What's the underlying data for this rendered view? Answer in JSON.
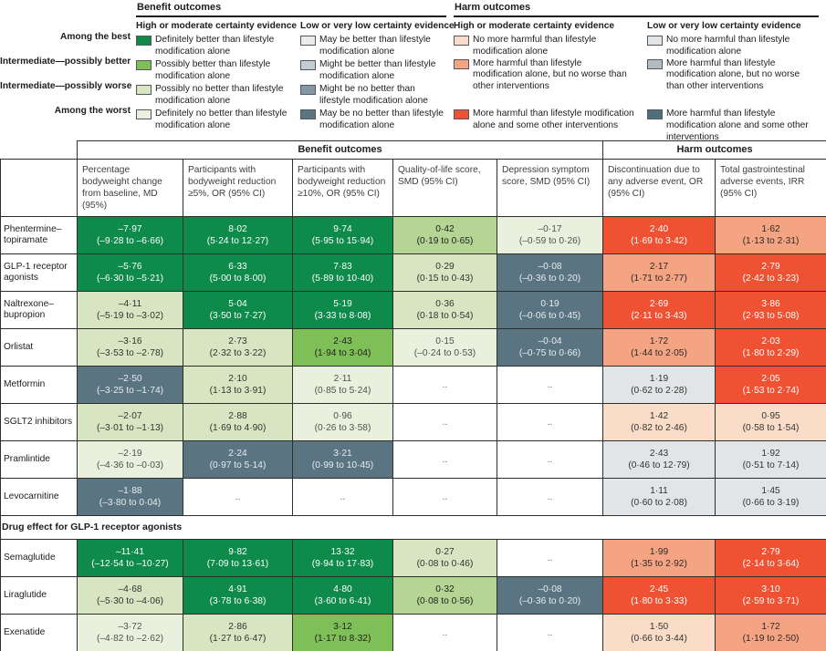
{
  "palette": {
    "g1": {
      "bg": "#0e8a4a",
      "fg": "#ffffff"
    },
    "g2": {
      "bg": "#7fbf58",
      "fg": "#20201e"
    },
    "g2l": {
      "bg": "#b5d595",
      "fg": "#20201e"
    },
    "g3": {
      "bg": "#d7e5c2",
      "fg": "#33332f"
    },
    "g4": {
      "bg": "#e9f0dd",
      "fg": "#52524d"
    },
    "lb1": {
      "bg": "#ebedec",
      "fg": "#20201e"
    },
    "lb2": {
      "bg": "#c4cdd2",
      "fg": "#20201e"
    },
    "lb3": {
      "bg": "#8299a4",
      "fg": "#ffffff"
    },
    "s1": {
      "bg": "#5b7482",
      "fg": "#e9edef"
    },
    "h1": {
      "bg": "#f9ddc8",
      "fg": "#33332f"
    },
    "h2": {
      "bg": "#f4a482",
      "fg": "#2b2b28"
    },
    "h3": {
      "bg": "#ef5233",
      "fg": "#ffffff"
    },
    "h4": {
      "bg": "#e2e5e7",
      "fg": "#33332f"
    },
    "hl2": {
      "bg": "#b2bcc1",
      "fg": "#20201e"
    },
    "hl3": {
      "bg": "#516e7d",
      "fg": "#ffffff"
    },
    "blank": {
      "bg": "#ffffff",
      "fg": "#55554f"
    }
  },
  "legend": {
    "row_labels": [
      "Among the best",
      "Intermediate—possibly better",
      "Intermediate—possibly worse",
      "Among the worst"
    ],
    "groups": [
      {
        "title": "Benefit outcomes",
        "columns": [
          {
            "title": "High or moderate certainty evidence",
            "items": [
              {
                "color_key": "g1",
                "label": "Definitely better than lifestyle modification alone"
              },
              {
                "color_key": "g2",
                "label": "Possibly better than lifestyle modification alone"
              },
              {
                "color_key": "g3",
                "label": "Possibly no better than lifestyle modification alone"
              },
              {
                "color_key": "g4",
                "label": "Definitely no better than lifestyle modification alone"
              }
            ]
          },
          {
            "title": "Low or very low certainty evidence",
            "items": [
              {
                "color_key": "lb1",
                "label": "May be better than lifestyle modification alone"
              },
              {
                "color_key": "lb2",
                "label": "Might be better than lifestyle modification alone"
              },
              {
                "color_key": "lb3",
                "label": "Might be no better than lifestyle modification alone"
              },
              {
                "color_key": "s1",
                "label": "May be no better than lifestyle modification alone"
              }
            ]
          }
        ]
      },
      {
        "title": "Harm outcomes",
        "columns": [
          {
            "title": "High or moderate certainty evidence",
            "items": [
              {
                "color_key": "h1",
                "label": "No more harmful than lifestyle modification alone"
              },
              {
                "color_key": "h2",
                "label": "More harmful than lifestyle modification alone, but no worse than other interventions"
              },
              {
                "color_key": "h3",
                "label": "More harmful than lifestyle modification alone and some other interventions"
              }
            ]
          },
          {
            "title": "Low or very low certainty evidence",
            "items": [
              {
                "color_key": "h4",
                "label": "No more harmful than lifestyle modification alone"
              },
              {
                "color_key": "hl2",
                "label": "More harmful than lifestyle modification alone, but no worse than other interventions"
              },
              {
                "color_key": "hl3",
                "label": "More harmful than lifestyle modification alone and some other interventions"
              }
            ]
          }
        ]
      }
    ]
  },
  "chart_data": {
    "type": "table",
    "group_headers": [
      {
        "label": "Benefit outcomes",
        "span": 5
      },
      {
        "label": "Harm outcomes",
        "span": 2
      }
    ],
    "columns": [
      "Percentage bodyweight change from baseline, MD (95%)",
      "Participants with bodyweight reduction ≥5%, OR (95% CI)",
      "Participants with bodyweight reduction ≥10%, OR (95% CI)",
      "Quality-of-life score, SMD (95% CI)",
      "Depression symptom score, SMD (95% CI)",
      "Discontinuation due to any adverse event, OR (95% CI)",
      "Total gastrointestinal adverse events, IRR (95% CI)"
    ],
    "sections": [
      {
        "header": null,
        "rows": [
          {
            "drug": "Phentermine–topiramate",
            "cells": [
              {
                "value": "–7·97",
                "ci": "(–9·28 to –6·66)",
                "key": "g1"
              },
              {
                "value": "8·02",
                "ci": "(5·24 to 12·27)",
                "key": "g1"
              },
              {
                "value": "9·74",
                "ci": "(5·95 to 15·94)",
                "key": "g1"
              },
              {
                "value": "0·42",
                "ci": "(0·19 to 0·65)",
                "key": "g2l"
              },
              {
                "value": "–0·17",
                "ci": "(–0·59 to 0·26)",
                "key": "g4"
              },
              {
                "value": "2·40",
                "ci": "(1·69 to 3·42)",
                "key": "h3"
              },
              {
                "value": "1·62",
                "ci": "(1·13 to 2·31)",
                "key": "h2"
              }
            ]
          },
          {
            "drug": "GLP-1 receptor agonists",
            "cells": [
              {
                "value": "–5·76",
                "ci": "(–6·30 to –5·21)",
                "key": "g1"
              },
              {
                "value": "6·33",
                "ci": "(5·00 to 8·00)",
                "key": "g1"
              },
              {
                "value": "7·83",
                "ci": "(5·89 to 10·40)",
                "key": "g1"
              },
              {
                "value": "0·29",
                "ci": "(0·15 to 0·43)",
                "key": "g3"
              },
              {
                "value": "–0·08",
                "ci": "(–0·36 to 0·20)",
                "key": "s1"
              },
              {
                "value": "2·17",
                "ci": "(1·71 to 2·77)",
                "key": "h2"
              },
              {
                "value": "2·79",
                "ci": "(2·42 to 3·23)",
                "key": "h3"
              }
            ]
          },
          {
            "drug": "Naltrexone–bupropion",
            "cells": [
              {
                "value": "–4·11",
                "ci": "(–5·19 to –3·02)",
                "key": "g3"
              },
              {
                "value": "5·04",
                "ci": "(3·50 to 7·27)",
                "key": "g1"
              },
              {
                "value": "5·19",
                "ci": "(3·33 to 8·08)",
                "key": "g1"
              },
              {
                "value": "0·36",
                "ci": "(0·18 to 0·54)",
                "key": "g3"
              },
              {
                "value": "0·19",
                "ci": "(–0·06 to 0·45)",
                "key": "s1"
              },
              {
                "value": "2·69",
                "ci": "(2·11 to 3·43)",
                "key": "h3"
              },
              {
                "value": "3·86",
                "ci": "(2·93 to 5·08)",
                "key": "h3"
              }
            ]
          },
          {
            "drug": "Orlistat",
            "cells": [
              {
                "value": "–3·16",
                "ci": "(–3·53 to –2·78)",
                "key": "g3"
              },
              {
                "value": "2·73",
                "ci": "(2·32 to 3·22)",
                "key": "g3"
              },
              {
                "value": "2·43",
                "ci": "(1·94 to 3·04)",
                "key": "g2"
              },
              {
                "value": "0·15",
                "ci": "(–0·24 to 0·53)",
                "key": "g4"
              },
              {
                "value": "–0·04",
                "ci": "(–0·75 to 0·66)",
                "key": "s1"
              },
              {
                "value": "1·72",
                "ci": "(1·44 to 2·05)",
                "key": "h2"
              },
              {
                "value": "2·03",
                "ci": "(1·80 to 2·29)",
                "key": "h3"
              }
            ]
          },
          {
            "drug": "Metformin",
            "cells": [
              {
                "value": "–2·50",
                "ci": "(–3·25 to –1·74)",
                "key": "s1"
              },
              {
                "value": "2·10",
                "ci": "(1·13 to 3·91)",
                "key": "g3"
              },
              {
                "value": "2·11",
                "ci": "(0·85 to 5·24)",
                "key": "g4"
              },
              {
                "value": "..",
                "ci": "",
                "key": "blank"
              },
              {
                "value": "..",
                "ci": "",
                "key": "blank"
              },
              {
                "value": "1·19",
                "ci": "(0·62 to 2·28)",
                "key": "h4"
              },
              {
                "value": "2·05",
                "ci": "(1·53 to 2·74)",
                "key": "h3"
              }
            ]
          },
          {
            "drug": "SGLT2 inhibitors",
            "cells": [
              {
                "value": "–2·07",
                "ci": "(–3·01 to –1·13)",
                "key": "g3"
              },
              {
                "value": "2·88",
                "ci": "(1·69 to 4·90)",
                "key": "g3"
              },
              {
                "value": "0·96",
                "ci": "(0·26 to 3·58)",
                "key": "g4"
              },
              {
                "value": "..",
                "ci": "",
                "key": "blank"
              },
              {
                "value": "..",
                "ci": "",
                "key": "blank"
              },
              {
                "value": "1·42",
                "ci": "(0·82 to 2·46)",
                "key": "h1"
              },
              {
                "value": "0·95",
                "ci": "(0·58 to 1·54)",
                "key": "h1"
              }
            ]
          },
          {
            "drug": "Pramlintide",
            "cells": [
              {
                "value": "–2·19",
                "ci": "(–4·36 to –0·03)",
                "key": "g4"
              },
              {
                "value": "2·24",
                "ci": "(0·97 to 5·14)",
                "key": "s1"
              },
              {
                "value": "3·21",
                "ci": "(0·99 to 10·45)",
                "key": "s1"
              },
              {
                "value": "..",
                "ci": "",
                "key": "blank"
              },
              {
                "value": "..",
                "ci": "",
                "key": "blank"
              },
              {
                "value": "2·43",
                "ci": "(0·46 to 12·79)",
                "key": "h4"
              },
              {
                "value": "1·92",
                "ci": "(0·51 to 7·14)",
                "key": "h4"
              }
            ]
          },
          {
            "drug": "Levocarnitine",
            "cells": [
              {
                "value": "–1·88",
                "ci": "(–3·80 to 0·04)",
                "key": "s1"
              },
              {
                "value": "..",
                "ci": "",
                "key": "blank"
              },
              {
                "value": "..",
                "ci": "",
                "key": "blank"
              },
              {
                "value": "..",
                "ci": "",
                "key": "blank"
              },
              {
                "value": "..",
                "ci": "",
                "key": "blank"
              },
              {
                "value": "1·11",
                "ci": "(0·60 to 2·08)",
                "key": "h4"
              },
              {
                "value": "1·45",
                "ci": "(0·66 to 3·19)",
                "key": "h4"
              }
            ]
          }
        ]
      },
      {
        "header": "Drug effect for GLP-1 receptor agonists",
        "rows": [
          {
            "drug": "Semaglutide",
            "cells": [
              {
                "value": "–11·41",
                "ci": "(–12·54 to –10·27)",
                "key": "g1"
              },
              {
                "value": "9·82",
                "ci": "(7·09 to 13·61)",
                "key": "g1"
              },
              {
                "value": "13·32",
                "ci": "(9·94 to 17·83)",
                "key": "g1"
              },
              {
                "value": "0·27",
                "ci": "(0·08 to 0·46)",
                "key": "g3"
              },
              {
                "value": "..",
                "ci": "",
                "key": "blank"
              },
              {
                "value": "1·99",
                "ci": "(1·35 to 2·92)",
                "key": "h2"
              },
              {
                "value": "2·79",
                "ci": "(2·14 to 3·64)",
                "key": "h3"
              }
            ]
          },
          {
            "drug": "Liraglutide",
            "cells": [
              {
                "value": "–4·68",
                "ci": "(–5·30 to –4·06)",
                "key": "g3"
              },
              {
                "value": "4·91",
                "ci": "(3·78 to 6·38)",
                "key": "g1"
              },
              {
                "value": "4·80",
                "ci": "(3·60 to 6·41)",
                "key": "g1"
              },
              {
                "value": "0·32",
                "ci": "(0·08 to 0·56)",
                "key": "g2l"
              },
              {
                "value": "–0·08",
                "ci": "(–0·36 to 0·20)",
                "key": "s1"
              },
              {
                "value": "2·45",
                "ci": "(1·80 to 3·33)",
                "key": "h3"
              },
              {
                "value": "3·10",
                "ci": "(2·59 to 3·71)",
                "key": "h3"
              }
            ]
          },
          {
            "drug": "Exenatide",
            "cells": [
              {
                "value": "–3·72",
                "ci": "(–4·82 to –2·62)",
                "key": "g4"
              },
              {
                "value": "2·86",
                "ci": "(1·27 to 6·47)",
                "key": "g3"
              },
              {
                "value": "3·12",
                "ci": "(1·17 to 8·32)",
                "key": "g2"
              },
              {
                "value": "..",
                "ci": "",
                "key": "blank"
              },
              {
                "value": "..",
                "ci": "",
                "key": "blank"
              },
              {
                "value": "1·50",
                "ci": "(0·66 to 3·44)",
                "key": "h1"
              },
              {
                "value": "1·72",
                "ci": "(1·19 to 2·50)",
                "key": "h2"
              }
            ]
          }
        ]
      }
    ]
  }
}
